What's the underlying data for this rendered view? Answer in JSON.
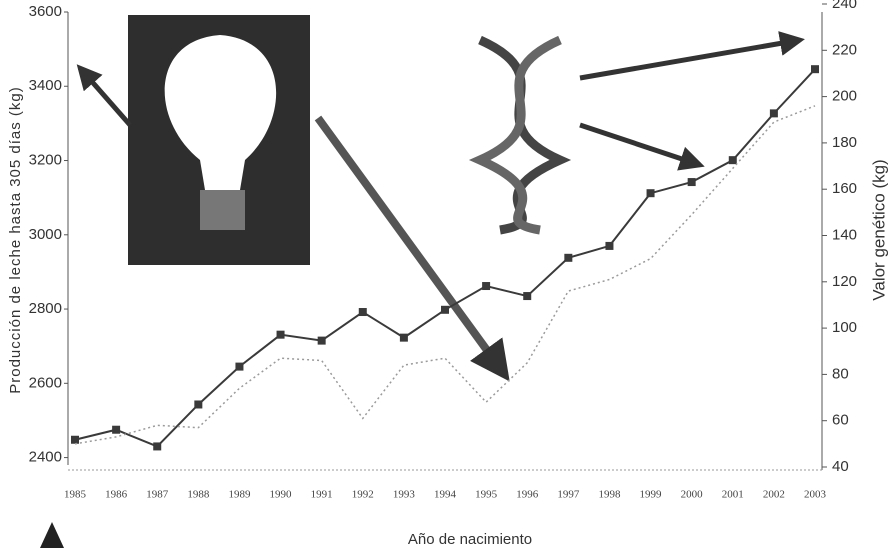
{
  "chart_data": {
    "type": "line",
    "x_label": "Año de nacimiento",
    "y_label": "Producción de leche hasta 305 días (kg)",
    "y2_label": "Valor genético (kg)",
    "categories": [
      "1985",
      "1986",
      "1987",
      "1988",
      "1989",
      "1990",
      "1991",
      "1992",
      "1993",
      "1994",
      "1995",
      "1996",
      "1997",
      "1998",
      "1999",
      "2000",
      "2001",
      "2002",
      "2003"
    ],
    "series": [
      {
        "name": "Producción de leche",
        "color": "#3a3a3a",
        "values": [
          2448,
          2475,
          2430,
          2543,
          2645,
          2731,
          2715,
          2792,
          2723,
          2798,
          2862,
          2835,
          2938,
          2970,
          3112,
          3142,
          3201,
          3327,
          3446
        ]
      },
      {
        "name": "Valor genético",
        "color": "#9a9a9a",
        "axis": "y2",
        "values": [
          50,
          53,
          58,
          57,
          74,
          87,
          86,
          61,
          84,
          87,
          68,
          85,
          116,
          121,
          130,
          149,
          169,
          189,
          196
        ]
      }
    ],
    "ylim": [
      2380,
      3600
    ],
    "yticks": [
      2400,
      2600,
      2800,
      3000,
      3200,
      3400,
      3600
    ],
    "y2lim": [
      40,
      240
    ],
    "y2ticks": [
      40,
      60,
      80,
      100,
      120,
      140,
      160,
      180,
      200,
      220,
      240
    ]
  }
}
